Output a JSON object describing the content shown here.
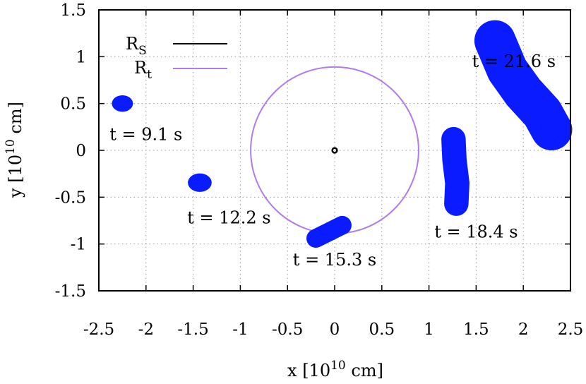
{
  "chart_data": {
    "type": "scatter",
    "xlabel_main": "x [10",
    "xlabel_exp": "10",
    "xlabel_tail": " cm]",
    "ylabel_main": "y [10",
    "ylabel_exp": "10",
    "ylabel_tail": " cm]",
    "xlim": [
      -2.5,
      2.5
    ],
    "ylim": [
      -1.5,
      1.5
    ],
    "xticks": [
      -2.5,
      -2,
      -1.5,
      -1,
      -0.5,
      0,
      0.5,
      1,
      1.5,
      2,
      2.5
    ],
    "yticks": [
      -1.5,
      -1,
      -0.5,
      0,
      0.5,
      1,
      1.5
    ],
    "xtick_labels": [
      "-2.5",
      "-2",
      "-1.5",
      "-1",
      "-0.5",
      "0",
      "0.5",
      "1",
      "1.5",
      "2",
      "2.5"
    ],
    "ytick_labels": [
      "-1.5",
      "-1",
      "-0.5",
      "0",
      "0.5",
      "1",
      "1.5"
    ],
    "grid": true,
    "legend_position": "top-left",
    "legend": [
      {
        "main": "R",
        "sub": "S",
        "color": "#000000"
      },
      {
        "main": "R",
        "sub": "t",
        "color": "#b07ce8"
      }
    ],
    "circles": [
      {
        "name": "R_S",
        "cx": 0,
        "cy": 0,
        "r": 0.025,
        "color": "#000000"
      },
      {
        "name": "R_t",
        "cx": 0,
        "cy": 0,
        "r": 0.89,
        "color": "#b07ce8"
      }
    ],
    "blobs": [
      {
        "label": "t = 9.1 s",
        "points": [
          [
            -2.25,
            0.5
          ]
        ],
        "width": 0.08,
        "label_pos": [
          -2.0,
          0.17
        ]
      },
      {
        "label": "t = 12.2 s",
        "points": [
          [
            -1.43,
            -0.345
          ]
        ],
        "width": 0.09,
        "label_pos": [
          -1.12,
          -0.72
        ]
      },
      {
        "label": "t = 15.3 s",
        "points": [
          [
            -0.2,
            -0.94
          ],
          [
            0.08,
            -0.8
          ]
        ],
        "width": 0.1,
        "label_pos": [
          0.0,
          -1.17
        ]
      },
      {
        "label": "t = 18.4 s",
        "points": [
          [
            1.26,
            0.12
          ],
          [
            1.27,
            -0.1
          ],
          [
            1.3,
            -0.35
          ],
          [
            1.29,
            -0.57
          ]
        ],
        "width": 0.13,
        "label_pos": [
          1.5,
          -0.87
        ]
      },
      {
        "label": "t = 21.6 s",
        "points": [
          [
            1.7,
            1.17
          ],
          [
            1.83,
            0.86
          ],
          [
            2.0,
            0.62
          ],
          [
            2.2,
            0.4
          ],
          [
            2.3,
            0.22
          ]
        ],
        "width": 0.22,
        "label_pos": [
          1.9,
          0.95
        ]
      }
    ],
    "color": "#0a1bff"
  }
}
